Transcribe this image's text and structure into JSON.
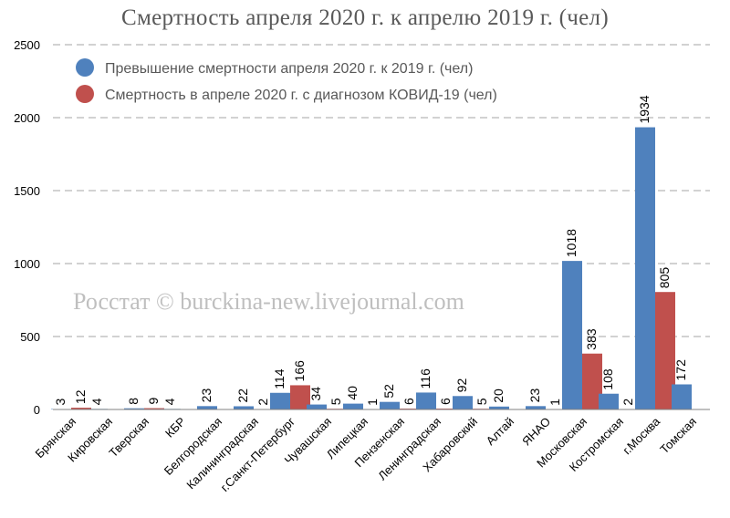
{
  "chart_data": {
    "type": "bar",
    "title": "Смертность апреля 2020 г. к апрелю 2019 г. (чел)",
    "xlabel": "",
    "ylabel": "",
    "ylim": [
      0,
      2500
    ],
    "yticks": [
      0,
      500,
      1000,
      1500,
      2000,
      2500
    ],
    "grid": true,
    "legend_position": "top-left",
    "categories": [
      "Брянская",
      "Кировская",
      "Тверская",
      "КБР",
      "Белгородская",
      "Калининградская",
      "г.Санкт-Петербург",
      "Чувашская",
      "Липецкая",
      "Пензенская",
      "Ленинградская",
      "Хабаровский",
      "Алтай",
      "ЯНАО",
      "Московская",
      "Костромская",
      "г.Москва",
      "Томская"
    ],
    "series": [
      {
        "name": "Превышение смертности апреля 2020 г. к 2019 г. (чел)",
        "color": "#4f81bd",
        "values": [
          3,
          4,
          8,
          4,
          23,
          22,
          114,
          34,
          40,
          52,
          116,
          92,
          20,
          23,
          1018,
          108,
          1934,
          172
        ]
      },
      {
        "name": "Смертность в апреле 2020 г. с диагнозом КОВИД-19 (чел)",
        "color": "#c0504d",
        "values": [
          12,
          null,
          9,
          null,
          null,
          2,
          166,
          5,
          1,
          6,
          6,
          5,
          null,
          1,
          383,
          2,
          805,
          null
        ]
      }
    ]
  },
  "watermark": "Росстат © burckina-new.livejournal.com"
}
